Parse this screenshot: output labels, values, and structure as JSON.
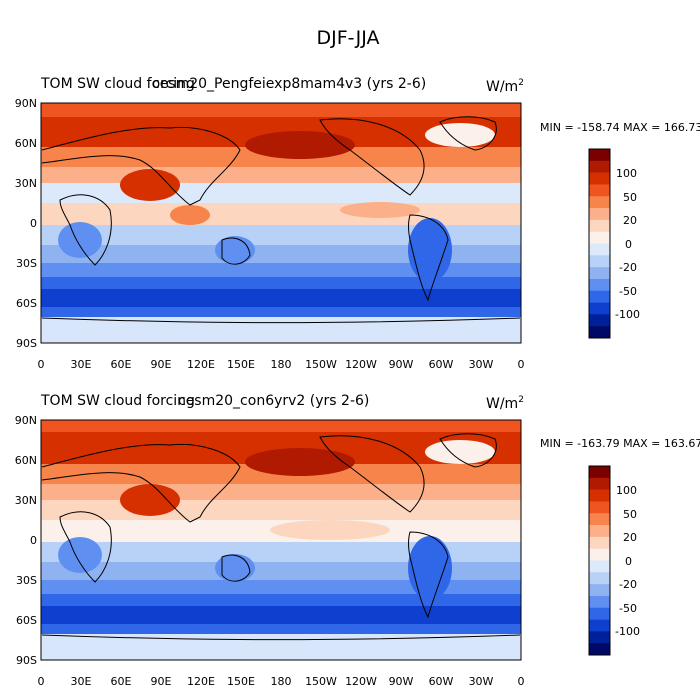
{
  "figure_title": "DJF-JJA",
  "colorbar_levels": [
    "100",
    "50",
    "20",
    "0",
    "-20",
    "-50",
    "-100"
  ],
  "colors": {
    "scale": [
      "#7a0000",
      "#b01a00",
      "#d73000",
      "#ee5520",
      "#f7844a",
      "#fbb08a",
      "#fdd6c0",
      "#fbf1ea",
      "#dbe9fb",
      "#b8d1f7",
      "#8fb3f1",
      "#5f8ff0",
      "#2f67e8",
      "#0f3fcf",
      "#001f9a",
      "#000a66"
    ]
  },
  "chart_data": [
    {
      "type": "heatmap",
      "left_title": "TOM SW cloud forcing",
      "center_title": "cesm20_Pengfeiexp8mam4v3 (yrs 2-6)",
      "units": "W/m",
      "units_sup": "2",
      "stats_text": "MIN = -158.74 MAX = 166.73",
      "min": -158.74,
      "max": 166.73,
      "x_ticks": [
        "0",
        "30E",
        "60E",
        "90E",
        "120E",
        "150E",
        "180",
        "150W",
        "120W",
        "90W",
        "60W",
        "30W",
        "0"
      ],
      "y_ticks": [
        "90N",
        "60N",
        "30N",
        "0",
        "30S",
        "60S",
        "90S"
      ],
      "xlim": [
        0,
        360
      ],
      "ylim": [
        -90,
        90
      ],
      "colorbar_levels": [
        100,
        50,
        20,
        0,
        -20,
        -50,
        -100
      ]
    },
    {
      "type": "heatmap",
      "left_title": "TOM SW cloud forcing",
      "center_title": "cesm20_con6yrv2 (yrs 2-6)",
      "units": "W/m",
      "units_sup": "2",
      "stats_text": "MIN = -163.79 MAX = 163.67",
      "min": -163.79,
      "max": 163.67,
      "x_ticks": [
        "0",
        "30E",
        "60E",
        "90E",
        "120E",
        "150E",
        "180",
        "150W",
        "120W",
        "90W",
        "60W",
        "30W",
        "0"
      ],
      "y_ticks": [
        "90N",
        "60N",
        "30N",
        "0",
        "30S",
        "60S",
        "90S"
      ],
      "xlim": [
        0,
        360
      ],
      "ylim": [
        -90,
        90
      ],
      "colorbar_levels": [
        100,
        50,
        20,
        0,
        -20,
        -50,
        -100
      ]
    }
  ]
}
